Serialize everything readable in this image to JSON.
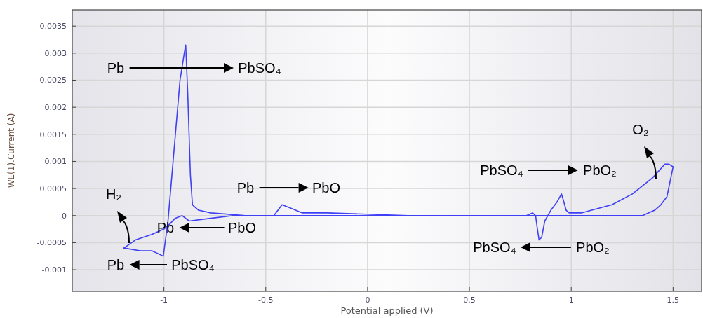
{
  "chart_data": {
    "type": "line",
    "xlabel": "Potential applied (V)",
    "ylabel": "WE(1).Current (A)",
    "xlim": [
      -1.45,
      1.64
    ],
    "ylim": [
      -0.0014,
      0.0038
    ],
    "xticks": [
      -1,
      -0.5,
      0,
      0.5,
      1,
      1.5
    ],
    "yticks": [
      -0.001,
      -0.0005,
      0,
      0.0005,
      0.001,
      0.0015,
      0.002,
      0.0025,
      0.003,
      0.0035
    ],
    "grid": true,
    "series": [
      {
        "color": "#3f3ff5",
        "x": [
          -1.196,
          -1.117,
          -1.06,
          -1.03,
          -1.003,
          -0.98,
          -0.955,
          -0.921,
          -0.9,
          -0.893,
          -0.883,
          -0.87,
          -0.86,
          -0.83,
          -0.77,
          -0.6,
          -0.46,
          -0.44,
          -0.42,
          -0.385,
          -0.32,
          -0.2,
          0.2,
          0.6,
          0.78,
          0.81,
          0.825,
          0.832,
          0.842,
          0.855,
          0.87,
          0.9,
          0.93,
          0.952,
          0.96,
          0.975,
          0.99,
          1.05,
          1.1,
          1.2,
          1.3,
          1.4,
          1.46,
          1.48,
          1.5
        ],
        "values": [
          -0.0006,
          -0.00065,
          -0.00065,
          -0.0007,
          -0.00075,
          -0.0001,
          0.001,
          0.0025,
          0.003,
          0.00315,
          0.00225,
          0.00075,
          0.0002,
          0.0001,
          5e-05,
          0,
          0,
          0.0001,
          0.0002,
          0.00015,
          5e-05,
          5e-05,
          0,
          0,
          0,
          5e-05,
          0,
          -0.0002,
          -0.00045,
          -0.0004,
          -0.0001,
          0.0001,
          0.00025,
          0.0004,
          0.0003,
          0.0001,
          5e-05,
          5e-05,
          0.0001,
          0.0002,
          0.0004,
          0.0007,
          0.00095,
          0.00095,
          0.0009
        ]
      },
      {
        "color": "#3f3ff5",
        "x": [
          -1.196,
          -1.14,
          -1.06,
          -1.0,
          -0.97,
          -0.945,
          -0.91,
          -0.876,
          -0.77,
          -0.66,
          -0.4,
          0,
          0.4,
          0.8,
          1.2,
          1.35,
          1.41,
          1.44,
          1.47,
          1.5
        ],
        "values": [
          -0.0006,
          -0.00045,
          -0.00035,
          -0.00025,
          -0.00015,
          -5e-05,
          0,
          -0.0001,
          -5e-05,
          0,
          0,
          0,
          0,
          0,
          0,
          0,
          0.0001,
          0.0002,
          0.00035,
          0.0009
        ]
      }
    ],
    "annotations": [
      "Pb",
      "PbSO₄",
      "Pb",
      "PbO",
      "PbO",
      "Pb",
      "PbSO₄",
      "Pb",
      "PbSO₄",
      "PbO₂",
      "PbO₂",
      "PbSO₄",
      "H₂",
      "O₂"
    ]
  }
}
